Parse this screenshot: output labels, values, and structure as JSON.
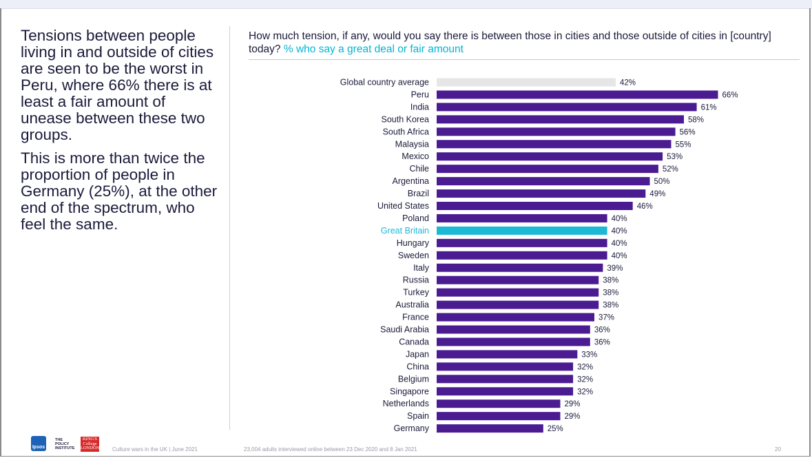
{
  "left_text": {
    "paragraph_1": "Tensions between people living in and outside of cities are seen to be the worst in Peru, where 66% there is at least a fair amount of unease between these two groups.",
    "paragraph_2": "This is more than twice the proportion of people in Germany (25%), at the other end of the spectrum, who feel the same."
  },
  "chart_title": {
    "main": "How much tension, if any, would you say there is between those in cities and those outside of cities in [country] today?",
    "highlight": "% who say a great deal or fair amount"
  },
  "colors": {
    "bar": "#4b1b91",
    "global_bar": "#e6e6e6",
    "highlight_bar": "#1cb8d6",
    "highlight_label": "#1cb8d6",
    "label": "#1a1a3a"
  },
  "chart_data": {
    "type": "bar",
    "orientation": "horizontal",
    "title": "How much tension, if any, would you say there is between those in cities and those outside of cities in [country] today? % who say a great deal or fair amount",
    "value_suffix": "%",
    "xlim": [
      0,
      66
    ],
    "categories": [
      "Global country average",
      "Peru",
      "India",
      "South Korea",
      "South Africa",
      "Malaysia",
      "Mexico",
      "Chile",
      "Argentina",
      "Brazil",
      "United States",
      "Poland",
      "Great Britain",
      "Hungary",
      "Sweden",
      "Italy",
      "Russia",
      "Turkey",
      "Australia",
      "France",
      "Saudi Arabia",
      "Canada",
      "Japan",
      "China",
      "Belgium",
      "Singapore",
      "Netherlands",
      "Spain",
      "Germany"
    ],
    "values": [
      42,
      66,
      61,
      58,
      56,
      55,
      53,
      52,
      50,
      49,
      46,
      40,
      40,
      40,
      40,
      39,
      38,
      38,
      38,
      37,
      36,
      36,
      33,
      32,
      32,
      32,
      29,
      29,
      25
    ],
    "highlights": {
      "Global country average": "global",
      "Great Britain": "highlight"
    }
  },
  "footer": {
    "ipsos_logo": "Ipsos",
    "policy_logo_lines": [
      "THE",
      "POLICY",
      "INSTITUTE"
    ],
    "kings_logo_lines": [
      "KING'S",
      "College",
      "LONDON"
    ],
    "source_text": "Culture wars in the UK | June 2021",
    "sample_text": "23,004 adults interviewed online between 23 Dec 2020 and 8 Jan 2021",
    "page_number": "20"
  }
}
